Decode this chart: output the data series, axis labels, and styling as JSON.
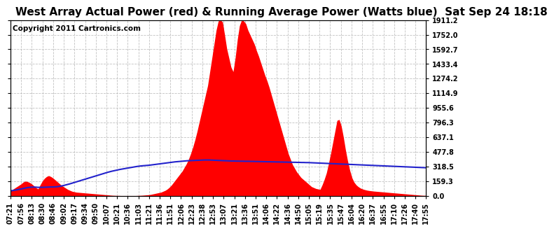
{
  "title": "West Array Actual Power (red) & Running Average Power (Watts blue)  Sat Sep 24 18:18",
  "copyright": "Copyright 2011 Cartronics.com",
  "yticks": [
    0.0,
    159.3,
    318.5,
    477.8,
    637.1,
    796.3,
    955.6,
    1114.9,
    1274.2,
    1433.4,
    1592.7,
    1752.0,
    1911.2
  ],
  "xtick_labels": [
    "07:21",
    "07:56",
    "08:13",
    "08:30",
    "08:46",
    "09:02",
    "09:17",
    "09:34",
    "09:50",
    "10:07",
    "10:21",
    "10:36",
    "11:03",
    "11:21",
    "11:36",
    "11:51",
    "12:06",
    "12:23",
    "12:38",
    "12:53",
    "13:07",
    "13:21",
    "13:36",
    "13:51",
    "14:06",
    "14:22",
    "14:36",
    "14:50",
    "15:05",
    "15:19",
    "15:35",
    "15:47",
    "16:04",
    "16:20",
    "16:37",
    "16:55",
    "17:10",
    "17:26",
    "17:40",
    "17:55"
  ],
  "bg_color": "#ffffff",
  "plot_bg_color": "#ffffff",
  "red_color": "#ff0000",
  "blue_color": "#2222cc",
  "grid_color": "#bbbbbb",
  "title_fontsize": 11,
  "copyright_fontsize": 7.5,
  "tick_fontsize": 7,
  "ymax": 1911.2,
  "ymin": 0.0,
  "power_data": [
    55,
    70,
    85,
    100,
    115,
    130,
    150,
    160,
    155,
    145,
    130,
    110,
    90,
    75,
    120,
    160,
    190,
    210,
    220,
    210,
    195,
    175,
    155,
    135,
    115,
    100,
    85,
    70,
    60,
    50,
    45,
    40,
    38,
    36,
    34,
    32,
    30,
    28,
    26,
    24,
    22,
    20,
    18,
    16,
    14,
    12,
    10,
    8,
    6,
    5,
    4,
    4,
    3,
    3,
    3,
    3,
    3,
    3,
    3,
    3,
    4,
    5,
    6,
    8,
    10,
    12,
    15,
    20,
    25,
    30,
    35,
    40,
    50,
    60,
    75,
    95,
    120,
    150,
    180,
    210,
    240,
    270,
    310,
    350,
    400,
    460,
    530,
    610,
    700,
    800,
    900,
    1000,
    1100,
    1200,
    1350,
    1500,
    1650,
    1800,
    1900,
    1911,
    1890,
    1750,
    1600,
    1500,
    1400,
    1350,
    1500,
    1700,
    1850,
    1911,
    1900,
    1870,
    1800,
    1750,
    1700,
    1650,
    1580,
    1520,
    1450,
    1380,
    1310,
    1250,
    1180,
    1100,
    1020,
    940,
    860,
    780,
    700,
    620,
    540,
    460,
    400,
    340,
    300,
    260,
    230,
    200,
    180,
    160,
    140,
    120,
    100,
    90,
    80,
    75,
    70,
    120,
    180,
    250,
    350,
    460,
    580,
    700,
    820,
    830,
    760,
    640,
    500,
    380,
    280,
    200,
    150,
    120,
    100,
    85,
    75,
    68,
    62,
    58,
    55,
    52,
    50,
    48,
    46,
    44,
    42,
    40,
    38,
    36,
    34,
    32,
    30,
    28,
    26,
    24,
    22,
    20,
    18,
    16,
    14,
    12,
    10,
    8,
    6,
    5,
    5
  ],
  "avg_data": [
    55,
    58,
    62,
    66,
    70,
    75,
    80,
    85,
    90,
    93,
    95,
    96,
    95,
    93,
    93,
    93,
    94,
    95,
    96,
    97,
    97,
    98,
    100,
    103,
    107,
    112,
    118,
    124,
    130,
    137,
    144,
    151,
    158,
    165,
    172,
    179,
    186,
    193,
    200,
    207,
    214,
    221,
    228,
    235,
    242,
    249,
    256,
    262,
    268,
    273,
    278,
    283,
    288,
    292,
    296,
    300,
    304,
    308,
    312,
    316,
    320,
    323,
    326,
    328,
    330,
    332,
    334,
    337,
    340,
    343,
    346,
    349,
    352,
    355,
    358,
    361,
    364,
    367,
    370,
    372,
    374,
    376,
    378,
    380,
    382,
    383,
    384,
    385,
    386,
    387,
    388,
    389,
    390,
    390,
    390,
    389,
    388,
    387,
    386,
    385,
    384,
    383,
    382,
    381,
    380,
    379,
    379,
    378,
    378,
    377,
    377,
    376,
    376,
    376,
    375,
    375,
    374,
    374,
    373,
    373,
    372,
    372,
    371,
    371,
    370,
    370,
    369,
    369,
    368,
    368,
    367,
    367,
    366,
    366,
    365,
    365,
    364,
    364,
    363,
    363,
    362,
    362,
    361,
    360,
    359,
    358,
    357,
    356,
    355,
    354,
    353,
    352,
    351,
    350,
    349,
    348,
    347,
    346,
    345,
    344,
    343,
    342,
    341,
    340,
    339,
    338,
    337,
    336,
    335,
    334,
    333,
    332,
    331,
    330,
    329,
    328,
    327,
    326,
    325,
    324,
    323,
    322,
    321,
    320,
    319,
    318,
    317,
    316,
    315,
    314,
    313,
    312,
    311,
    310,
    309,
    308,
    307,
    306
  ]
}
